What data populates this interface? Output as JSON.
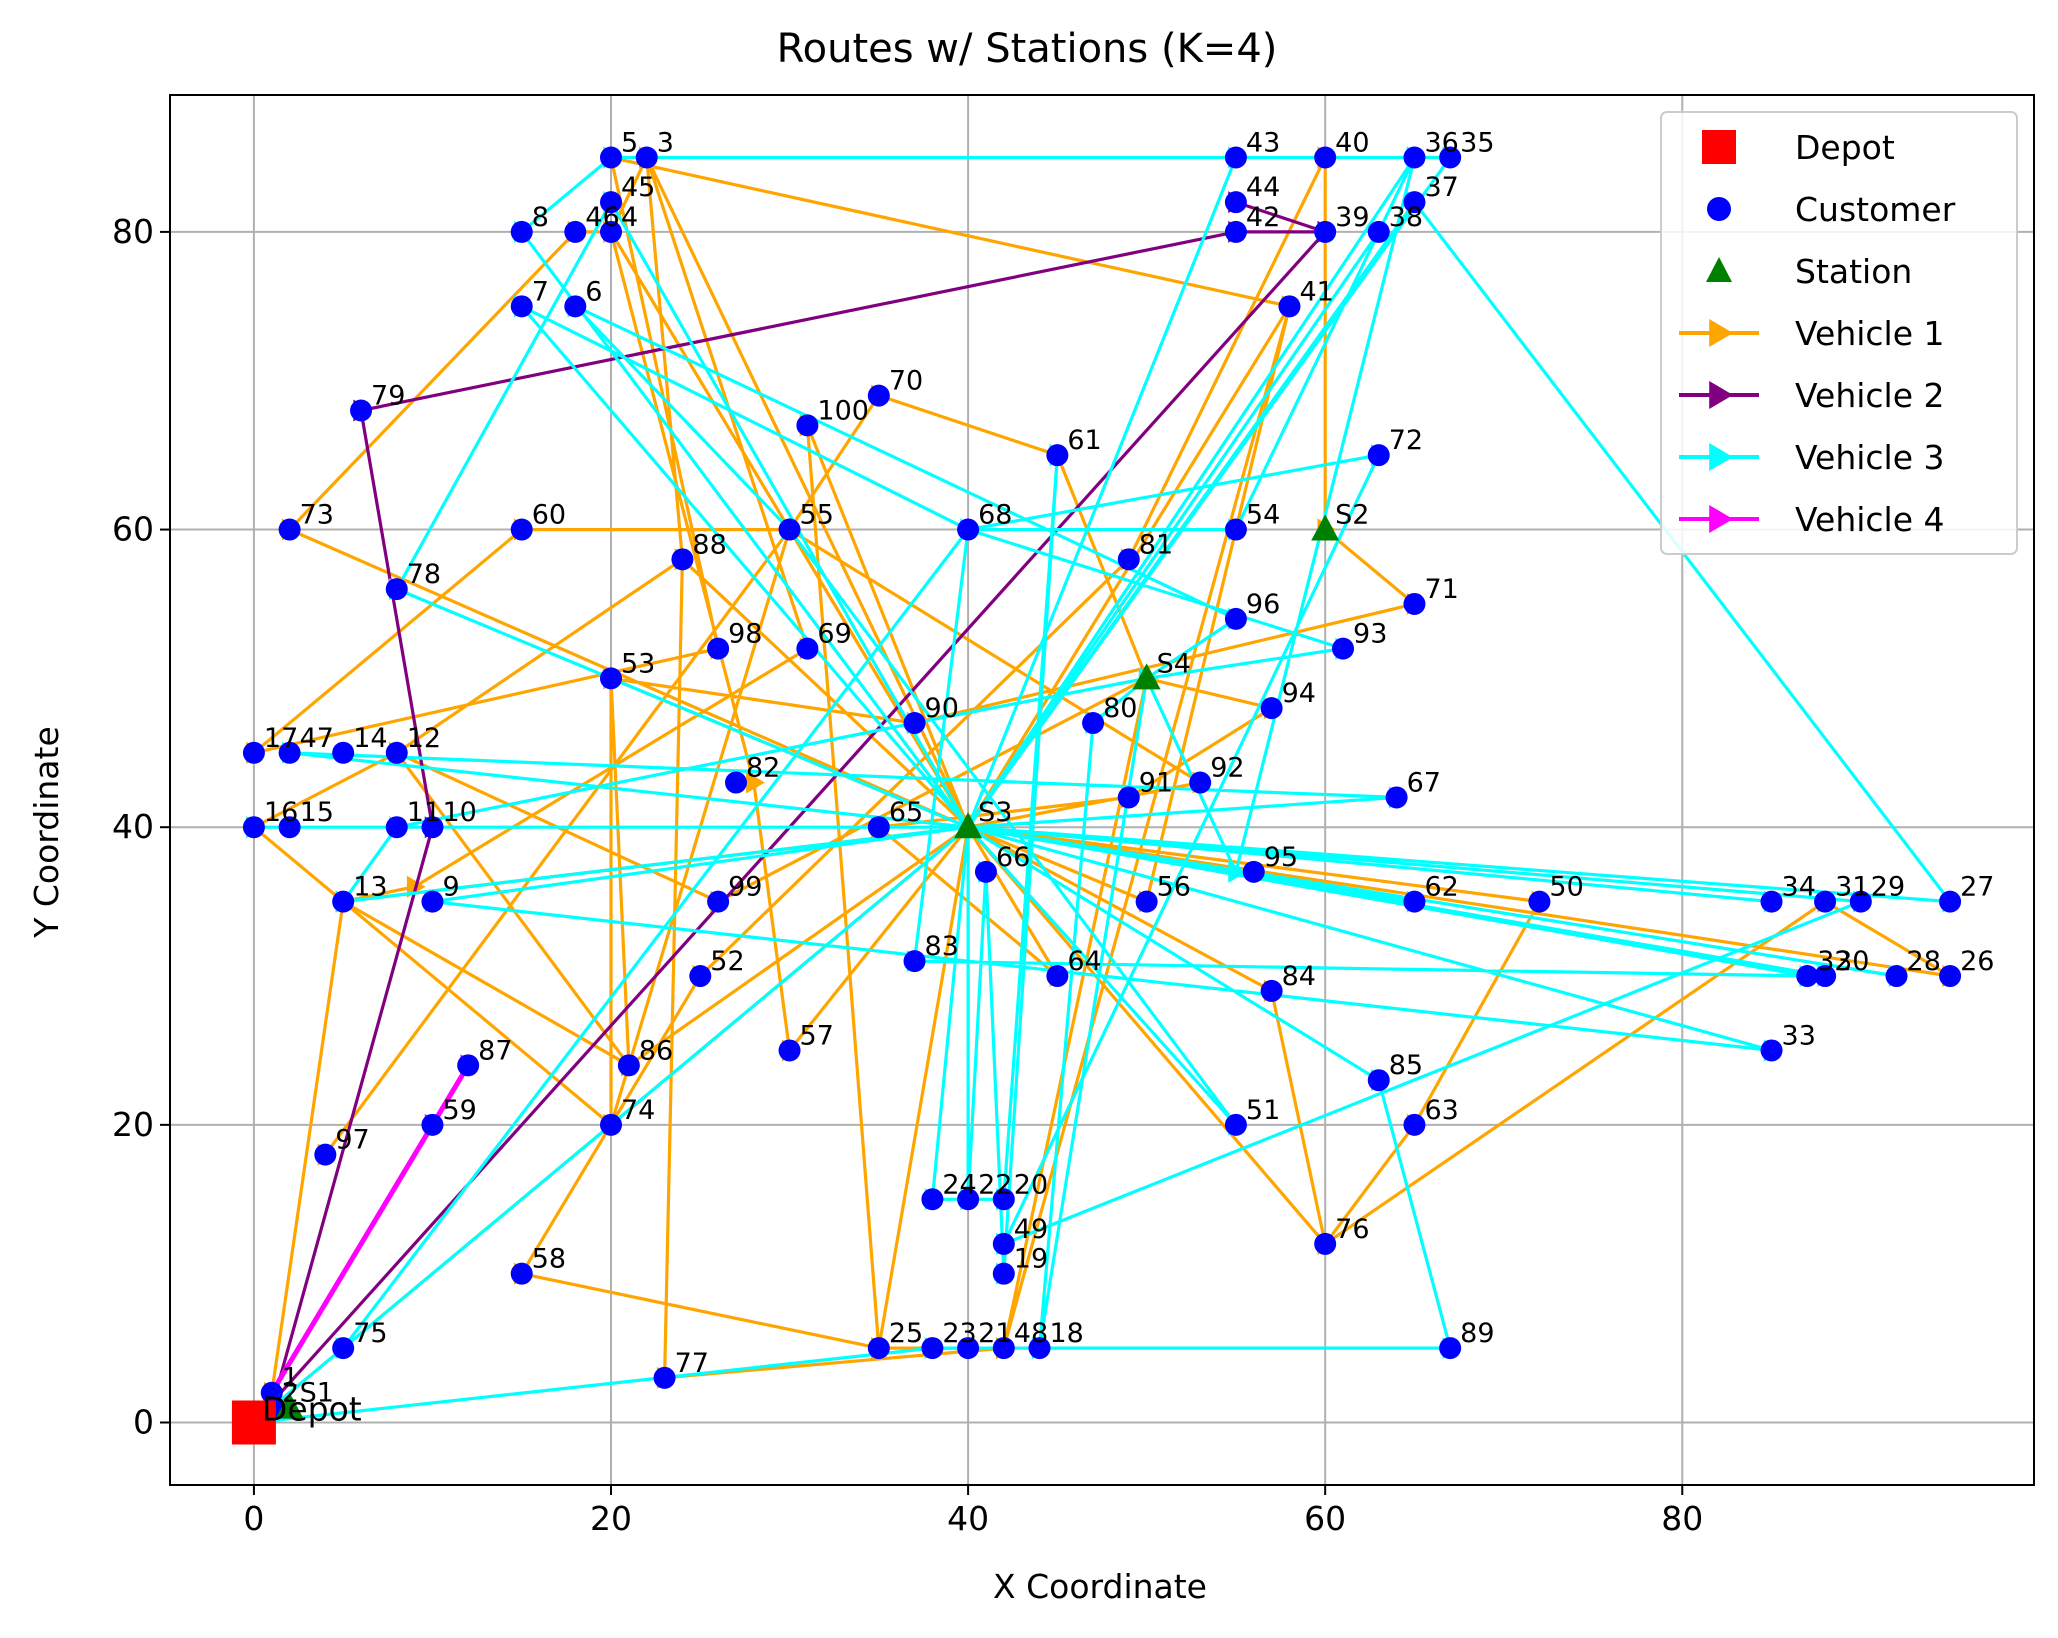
{
  "chart_data": {
    "type": "scatter",
    "title": "Routes w/ Stations (K=4)",
    "xlabel": "X Coordinate",
    "ylabel": "Y Coordinate",
    "xlim": [
      -4.7,
      99.7
    ],
    "ylim": [
      -4.2,
      89.2
    ],
    "xticks": [
      0,
      20,
      40,
      60,
      80
    ],
    "yticks": [
      0,
      20,
      40,
      60,
      80
    ],
    "grid": true,
    "legend_position": "top-right",
    "colors": {
      "depot": "#ff0000",
      "customer": "#0000ff",
      "station": "#008000",
      "vehicle1": "#ffa500",
      "vehicle2": "#800080",
      "vehicle3": "#00ffff",
      "vehicle4": "#ff00ff"
    },
    "legend": [
      {
        "key": "depot",
        "label": "Depot",
        "marker": "square"
      },
      {
        "key": "customer",
        "label": "Customer",
        "marker": "circle"
      },
      {
        "key": "station",
        "label": "Station",
        "marker": "triangle"
      },
      {
        "key": "vehicle1",
        "label": "Vehicle 1",
        "marker": "line"
      },
      {
        "key": "vehicle2",
        "label": "Vehicle 2",
        "marker": "line"
      },
      {
        "key": "vehicle3",
        "label": "Vehicle 3",
        "marker": "line"
      },
      {
        "key": "vehicle4",
        "label": "Vehicle 4",
        "marker": "line"
      }
    ],
    "depot": {
      "label": "Depot",
      "x": 0,
      "y": 0
    },
    "stations": [
      {
        "label": "S1",
        "x": 2,
        "y": 1
      },
      {
        "label": "S2",
        "x": 60,
        "y": 60
      },
      {
        "label": "S3",
        "x": 40,
        "y": 40
      },
      {
        "label": "S4",
        "x": 50,
        "y": 50
      }
    ],
    "customers": [
      {
        "label": "1",
        "x": 1,
        "y": 2
      },
      {
        "label": "2",
        "x": 1,
        "y": 1
      },
      {
        "label": "3",
        "x": 22,
        "y": 85
      },
      {
        "label": "4",
        "x": 20,
        "y": 80
      },
      {
        "label": "5",
        "x": 20,
        "y": 85
      },
      {
        "label": "6",
        "x": 18,
        "y": 75
      },
      {
        "label": "7",
        "x": 15,
        "y": 75
      },
      {
        "label": "8",
        "x": 15,
        "y": 80
      },
      {
        "label": "9",
        "x": 10,
        "y": 35
      },
      {
        "label": "10",
        "x": 10,
        "y": 40
      },
      {
        "label": "11",
        "x": 8,
        "y": 40
      },
      {
        "label": "12",
        "x": 8,
        "y": 45
      },
      {
        "label": "13",
        "x": 5,
        "y": 35
      },
      {
        "label": "14",
        "x": 5,
        "y": 45
      },
      {
        "label": "15",
        "x": 2,
        "y": 40
      },
      {
        "label": "16",
        "x": 0,
        "y": 40
      },
      {
        "label": "17",
        "x": 0,
        "y": 45
      },
      {
        "label": "18",
        "x": 44,
        "y": 5
      },
      {
        "label": "19",
        "x": 42,
        "y": 10
      },
      {
        "label": "20",
        "x": 42,
        "y": 15
      },
      {
        "label": "21",
        "x": 40,
        "y": 5
      },
      {
        "label": "22",
        "x": 40,
        "y": 15
      },
      {
        "label": "23",
        "x": 38,
        "y": 5
      },
      {
        "label": "24",
        "x": 38,
        "y": 15
      },
      {
        "label": "25",
        "x": 35,
        "y": 5
      },
      {
        "label": "26",
        "x": 95,
        "y": 30
      },
      {
        "label": "27",
        "x": 95,
        "y": 35
      },
      {
        "label": "28",
        "x": 92,
        "y": 30
      },
      {
        "label": "29",
        "x": 90,
        "y": 35
      },
      {
        "label": "30",
        "x": 88,
        "y": 30
      },
      {
        "label": "31",
        "x": 88,
        "y": 35
      },
      {
        "label": "32",
        "x": 87,
        "y": 30
      },
      {
        "label": "33",
        "x": 85,
        "y": 25
      },
      {
        "label": "34",
        "x": 85,
        "y": 35
      },
      {
        "label": "35",
        "x": 67,
        "y": 85
      },
      {
        "label": "36",
        "x": 65,
        "y": 85
      },
      {
        "label": "37",
        "x": 65,
        "y": 82
      },
      {
        "label": "38",
        "x": 63,
        "y": 80
      },
      {
        "label": "39",
        "x": 60,
        "y": 80
      },
      {
        "label": "40",
        "x": 60,
        "y": 85
      },
      {
        "label": "41",
        "x": 58,
        "y": 75
      },
      {
        "label": "42",
        "x": 55,
        "y": 80
      },
      {
        "label": "43",
        "x": 55,
        "y": 85
      },
      {
        "label": "44",
        "x": 55,
        "y": 82
      },
      {
        "label": "45",
        "x": 20,
        "y": 82
      },
      {
        "label": "46",
        "x": 18,
        "y": 80
      },
      {
        "label": "47",
        "x": 2,
        "y": 45
      },
      {
        "label": "48",
        "x": 42,
        "y": 5
      },
      {
        "label": "49",
        "x": 42,
        "y": 12
      },
      {
        "label": "50",
        "x": 72,
        "y": 35
      },
      {
        "label": "51",
        "x": 55,
        "y": 20
      },
      {
        "label": "52",
        "x": 25,
        "y": 30
      },
      {
        "label": "53",
        "x": 20,
        "y": 50
      },
      {
        "label": "54",
        "x": 55,
        "y": 60
      },
      {
        "label": "55",
        "x": 30,
        "y": 60
      },
      {
        "label": "56",
        "x": 50,
        "y": 35
      },
      {
        "label": "57",
        "x": 30,
        "y": 25
      },
      {
        "label": "58",
        "x": 15,
        "y": 10
      },
      {
        "label": "59",
        "x": 10,
        "y": 20
      },
      {
        "label": "60",
        "x": 15,
        "y": 60
      },
      {
        "label": "61",
        "x": 45,
        "y": 65
      },
      {
        "label": "62",
        "x": 65,
        "y": 35
      },
      {
        "label": "63",
        "x": 65,
        "y": 20
      },
      {
        "label": "64",
        "x": 45,
        "y": 30
      },
      {
        "label": "65",
        "x": 35,
        "y": 40
      },
      {
        "label": "66",
        "x": 41,
        "y": 37
      },
      {
        "label": "67",
        "x": 64,
        "y": 42
      },
      {
        "label": "68",
        "x": 40,
        "y": 60
      },
      {
        "label": "69",
        "x": 31,
        "y": 52
      },
      {
        "label": "70",
        "x": 35,
        "y": 69
      },
      {
        "label": "71",
        "x": 65,
        "y": 55
      },
      {
        "label": "72",
        "x": 63,
        "y": 65
      },
      {
        "label": "73",
        "x": 2,
        "y": 60
      },
      {
        "label": "74",
        "x": 20,
        "y": 20
      },
      {
        "label": "75",
        "x": 5,
        "y": 5
      },
      {
        "label": "76",
        "x": 60,
        "y": 12
      },
      {
        "label": "77",
        "x": 23,
        "y": 3
      },
      {
        "label": "78",
        "x": 8,
        "y": 56
      },
      {
        "label": "79",
        "x": 6,
        "y": 68
      },
      {
        "label": "80",
        "x": 47,
        "y": 47
      },
      {
        "label": "81",
        "x": 49,
        "y": 58
      },
      {
        "label": "82",
        "x": 27,
        "y": 43
      },
      {
        "label": "83",
        "x": 37,
        "y": 31
      },
      {
        "label": "84",
        "x": 57,
        "y": 29
      },
      {
        "label": "85",
        "x": 63,
        "y": 23
      },
      {
        "label": "86",
        "x": 21,
        "y": 24
      },
      {
        "label": "87",
        "x": 12,
        "y": 24
      },
      {
        "label": "88",
        "x": 24,
        "y": 58
      },
      {
        "label": "89",
        "x": 67,
        "y": 5
      },
      {
        "label": "90",
        "x": 37,
        "y": 47
      },
      {
        "label": "91",
        "x": 49,
        "y": 42
      },
      {
        "label": "92",
        "x": 53,
        "y": 43
      },
      {
        "label": "93",
        "x": 61,
        "y": 52
      },
      {
        "label": "94",
        "x": 57,
        "y": 48
      },
      {
        "label": "95",
        "x": 56,
        "y": 37
      },
      {
        "label": "96",
        "x": 55,
        "y": 54
      },
      {
        "label": "97",
        "x": 4,
        "y": 18
      },
      {
        "label": "98",
        "x": 26,
        "y": 52
      },
      {
        "label": "99",
        "x": 26,
        "y": 35
      },
      {
        "label": "100",
        "x": 31,
        "y": 67
      }
    ],
    "series": [
      {
        "name": "Vehicle 1",
        "points": [
          [
            0,
            0
          ],
          [
            1,
            2
          ],
          [
            5,
            35
          ],
          [
            9,
            36
          ],
          [
            31,
            52
          ],
          [
            22,
            85
          ],
          [
            20,
            80
          ],
          [
            18,
            80
          ],
          [
            2,
            60
          ],
          [
            40,
            40
          ],
          [
            30,
            60
          ],
          [
            15,
            60
          ],
          [
            0,
            45
          ],
          [
            26,
            52
          ],
          [
            20,
            85
          ],
          [
            58,
            75
          ],
          [
            50,
            35
          ],
          [
            40,
            40
          ],
          [
            24,
            58
          ],
          [
            23,
            3
          ],
          [
            42,
            5
          ],
          [
            50,
            50
          ],
          [
            45,
            65
          ],
          [
            35,
            69
          ],
          [
            30,
            60
          ],
          [
            20,
            20
          ],
          [
            40,
            40
          ],
          [
            35,
            5
          ],
          [
            31,
            67
          ],
          [
            40,
            40
          ],
          [
            30,
            25
          ],
          [
            28,
            43
          ],
          [
            20,
            80
          ],
          [
            40,
            40
          ],
          [
            20,
            50
          ],
          [
            20,
            20
          ],
          [
            0,
            40
          ],
          [
            8,
            45
          ],
          [
            24,
            58
          ],
          [
            22,
            85
          ],
          [
            40,
            40
          ],
          [
            21,
            24
          ],
          [
            8,
            45
          ],
          [
            26,
            35
          ],
          [
            50,
            50
          ],
          [
            57,
            48
          ],
          [
            49,
            42
          ],
          [
            35,
            40
          ],
          [
            45,
            30
          ],
          [
            40,
            40
          ],
          [
            53,
            43
          ],
          [
            30,
            60
          ],
          [
            4,
            18
          ],
          [
            30,
            60
          ],
          [
            40,
            40
          ],
          [
            57,
            29
          ],
          [
            60,
            12
          ],
          [
            40,
            40
          ],
          [
            5,
            35
          ],
          [
            21,
            24
          ],
          [
            20,
            50
          ],
          [
            37,
            47
          ],
          [
            65,
            55
          ],
          [
            60,
            60
          ],
          [
            60,
            85
          ],
          [
            49,
            58
          ],
          [
            25,
            30
          ],
          [
            15,
            10
          ],
          [
            35,
            5
          ],
          [
            42,
            5
          ],
          [
            58,
            75
          ],
          [
            40,
            40
          ],
          [
            72,
            35
          ],
          [
            65,
            20
          ],
          [
            60,
            12
          ],
          [
            88,
            35
          ],
          [
            95,
            30
          ],
          [
            40,
            40
          ],
          [
            0,
            0
          ]
        ]
      },
      {
        "name": "Vehicle 2",
        "points": [
          [
            0,
            0
          ],
          [
            1,
            1
          ],
          [
            10,
            40
          ],
          [
            6,
            68
          ],
          [
            55,
            80
          ],
          [
            60,
            80
          ],
          [
            55,
            82
          ],
          [
            60,
            80
          ],
          [
            0,
            0
          ]
        ]
      },
      {
        "name": "Vehicle 3",
        "points": [
          [
            0,
            0
          ],
          [
            38,
            5
          ],
          [
            67,
            5
          ],
          [
            63,
            23
          ],
          [
            40,
            40
          ],
          [
            0,
            40
          ],
          [
            40,
            40
          ],
          [
            85,
            35
          ],
          [
            40,
            40
          ],
          [
            92,
            30
          ],
          [
            40,
            40
          ],
          [
            88,
            30
          ],
          [
            40,
            40
          ],
          [
            87,
            30
          ],
          [
            40,
            40
          ],
          [
            85,
            25
          ],
          [
            10,
            35
          ],
          [
            40,
            40
          ],
          [
            65,
            35
          ],
          [
            40,
            40
          ],
          [
            95,
            35
          ],
          [
            65,
            82
          ],
          [
            40,
            40
          ],
          [
            63,
            80
          ],
          [
            40,
            40
          ],
          [
            67,
            85
          ],
          [
            65,
            85
          ],
          [
            20,
            85
          ],
          [
            15,
            80
          ],
          [
            40,
            40
          ],
          [
            40,
            15
          ],
          [
            41,
            37
          ],
          [
            42,
            10
          ],
          [
            45,
            65
          ],
          [
            42,
            15
          ],
          [
            38,
            15
          ],
          [
            40,
            40
          ],
          [
            90,
            35
          ],
          [
            42,
            12
          ],
          [
            63,
            65
          ],
          [
            40,
            60
          ],
          [
            15,
            75
          ],
          [
            40,
            40
          ],
          [
            55,
            20
          ],
          [
            30,
            60
          ],
          [
            18,
            75
          ],
          [
            55,
            54
          ],
          [
            50,
            50
          ],
          [
            47,
            47
          ],
          [
            44,
            5
          ],
          [
            50,
            50
          ],
          [
            61,
            52
          ],
          [
            40,
            60
          ],
          [
            37,
            31
          ],
          [
            87,
            30
          ],
          [
            40,
            40
          ],
          [
            55,
            85
          ],
          [
            65,
            85
          ],
          [
            40,
            40
          ],
          [
            64,
            42
          ],
          [
            2,
            45
          ],
          [
            40,
            40
          ],
          [
            8,
            56
          ],
          [
            20,
            82
          ],
          [
            40,
            40
          ],
          [
            5,
            5
          ],
          [
            40,
            60
          ],
          [
            55,
            60
          ],
          [
            65,
            85
          ],
          [
            55,
            37
          ],
          [
            50,
            50
          ],
          [
            37,
            47
          ],
          [
            8,
            40
          ],
          [
            5,
            35
          ],
          [
            40,
            40
          ],
          [
            0,
            0
          ]
        ]
      },
      {
        "name": "Vehicle 4",
        "points": [
          [
            0,
            0
          ],
          [
            12,
            24
          ],
          [
            0,
            0
          ],
          [
            10,
            20
          ],
          [
            0,
            0
          ]
        ]
      }
    ]
  }
}
